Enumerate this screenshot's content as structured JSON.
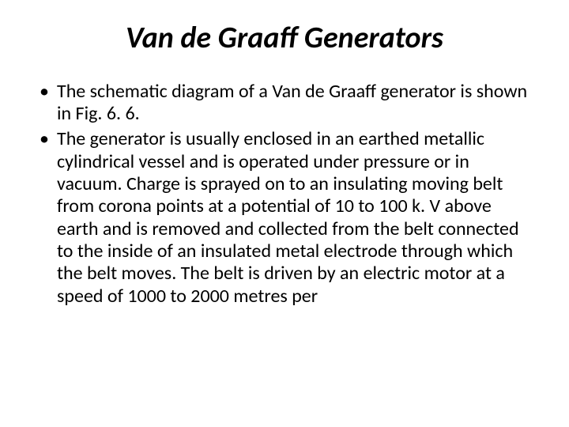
{
  "slide": {
    "title": "Van de Graaff Generators",
    "title_fontsize": 38,
    "title_color": "#000000",
    "body_fontsize": 24,
    "body_color": "#000000",
    "background_color": "#ffffff",
    "bullets": [
      "The schematic diagram of a Van de Graaff generator is shown in Fig. 6. 6.",
      "The generator is usually enclosed in an earthed metallic cylindrical vessel and is operated under pressure or in vacuum. Charge is sprayed on to an insulating moving belt from corona points at a potential of 10 to 100 k. V above earth and is removed and collected from the belt connected to the inside of an insulated metal electrode through which the belt moves. The belt is driven by an electric motor at a speed of 1000 to 2000 metres per"
    ]
  }
}
